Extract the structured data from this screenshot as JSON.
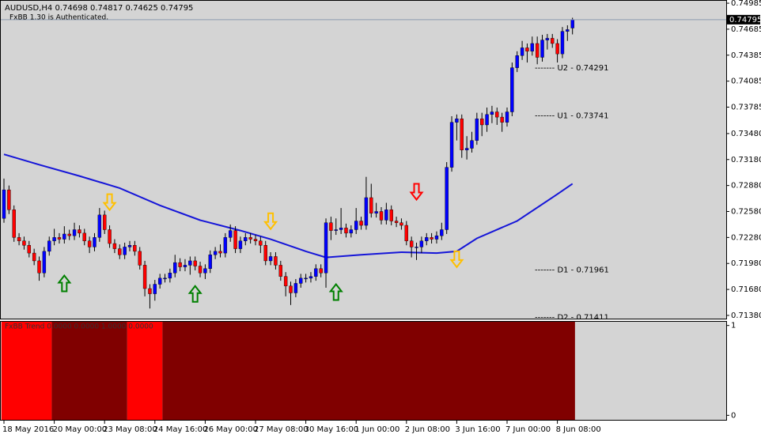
{
  "chart_data": {
    "type": "candlestick",
    "header": "AUDUSD,H4  0.74698 0.74817 0.74625 0.74795",
    "note": "FxBB 1.30 is Authenticated.",
    "bull_color": "#0000ff",
    "bear_color": "#ff0000",
    "wick_color": "#000000",
    "open": [
      0.725,
      0.7283,
      0.726,
      0.7228,
      0.7224,
      0.7219,
      0.721,
      0.7201,
      0.7187,
      0.7212,
      0.7224,
      0.7228,
      0.7226,
      0.7232,
      0.723,
      0.7237,
      0.7233,
      0.7224,
      0.7217,
      0.7228,
      0.7254,
      0.7237,
      0.7221,
      0.7215,
      0.7208,
      0.7217,
      0.7219,
      0.7212,
      0.7196,
      0.7169,
      0.7163,
      0.7174,
      0.7181,
      0.7181,
      0.7187,
      0.7199,
      0.7194,
      0.7196,
      0.7201,
      0.7195,
      0.7187,
      0.7192,
      0.7208,
      0.7212,
      0.721,
      0.7228,
      0.7236,
      0.7215,
      0.7224,
      0.7228,
      0.7226,
      0.7224,
      0.7219,
      0.7201,
      0.7206,
      0.7196,
      0.7183,
      0.7172,
      0.7164,
      0.7175,
      0.7181,
      0.7181,
      0.7183,
      0.7192,
      0.7187,
      0.7245,
      0.7236,
      0.7237,
      0.7239,
      0.7233,
      0.7237,
      0.7247,
      0.7242,
      0.7274,
      0.7256,
      0.7258,
      0.7248,
      0.726,
      0.7247,
      0.7245,
      0.7242,
      0.7224,
      0.7217,
      0.7217,
      0.7224,
      0.7228,
      0.7226,
      0.723,
      0.7237,
      0.7309,
      0.7361,
      0.7365,
      0.7329,
      0.7331,
      0.734,
      0.7365,
      0.7358,
      0.737,
      0.7373,
      0.7367,
      0.7361,
      0.7373,
      0.7424,
      0.7438,
      0.7447,
      0.7443,
      0.7452,
      0.7436,
      0.7456,
      0.7458,
      0.7452,
      0.744,
      0.7466,
      0.74698
    ],
    "high": [
      0.7296,
      0.7288,
      0.7265,
      0.7233,
      0.7229,
      0.7224,
      0.7215,
      0.7206,
      0.7217,
      0.7229,
      0.7238,
      0.7233,
      0.7241,
      0.7237,
      0.7245,
      0.7242,
      0.7238,
      0.7229,
      0.7233,
      0.7262,
      0.7259,
      0.7242,
      0.7226,
      0.722,
      0.7222,
      0.7224,
      0.7224,
      0.7217,
      0.7201,
      0.7174,
      0.7179,
      0.7186,
      0.7186,
      0.7192,
      0.7208,
      0.7204,
      0.7203,
      0.7206,
      0.7206,
      0.72,
      0.7197,
      0.7213,
      0.7217,
      0.722,
      0.7233,
      0.7243,
      0.7241,
      0.7229,
      0.7233,
      0.7233,
      0.7231,
      0.7229,
      0.7224,
      0.7211,
      0.7211,
      0.7201,
      0.7188,
      0.7177,
      0.718,
      0.7186,
      0.7186,
      0.7188,
      0.7197,
      0.7197,
      0.725,
      0.7252,
      0.725,
      0.7262,
      0.7244,
      0.7242,
      0.7262,
      0.7252,
      0.7298,
      0.729,
      0.7268,
      0.7263,
      0.7268,
      0.7265,
      0.7252,
      0.725,
      0.7247,
      0.7229,
      0.7222,
      0.7229,
      0.7233,
      0.7233,
      0.7235,
      0.7245,
      0.7315,
      0.7368,
      0.737,
      0.737,
      0.7345,
      0.735,
      0.7372,
      0.7372,
      0.7378,
      0.738,
      0.7378,
      0.7372,
      0.7378,
      0.743,
      0.7443,
      0.7455,
      0.7452,
      0.746,
      0.746,
      0.7462,
      0.7463,
      0.7463,
      0.7457,
      0.7471,
      0.7473,
      0.74817
    ],
    "low": [
      0.7245,
      0.7255,
      0.7223,
      0.7219,
      0.7214,
      0.7205,
      0.7196,
      0.7178,
      0.7182,
      0.7207,
      0.7219,
      0.7221,
      0.7221,
      0.7225,
      0.7225,
      0.7228,
      0.7219,
      0.721,
      0.7212,
      0.7223,
      0.7232,
      0.7216,
      0.721,
      0.7203,
      0.7203,
      0.7212,
      0.7207,
      0.7191,
      0.716,
      0.7146,
      0.7155,
      0.7169,
      0.7176,
      0.7176,
      0.7182,
      0.7189,
      0.7189,
      0.7185,
      0.719,
      0.7182,
      0.718,
      0.7187,
      0.7203,
      0.7205,
      0.7205,
      0.7223,
      0.721,
      0.721,
      0.7219,
      0.7221,
      0.7219,
      0.721,
      0.7196,
      0.7196,
      0.7191,
      0.7178,
      0.716,
      0.715,
      0.7159,
      0.717,
      0.7176,
      0.7176,
      0.7178,
      0.7182,
      0.717,
      0.7225,
      0.7231,
      0.7232,
      0.7228,
      0.7228,
      0.7232,
      0.7237,
      0.7237,
      0.7251,
      0.7251,
      0.7243,
      0.7243,
      0.7242,
      0.724,
      0.7237,
      0.7219,
      0.7205,
      0.7202,
      0.721,
      0.7219,
      0.7221,
      0.7221,
      0.7225,
      0.7232,
      0.7304,
      0.734,
      0.732,
      0.7318,
      0.7326,
      0.7335,
      0.7345,
      0.735,
      0.736,
      0.7358,
      0.735,
      0.7356,
      0.7368,
      0.7419,
      0.7433,
      0.743,
      0.7438,
      0.7428,
      0.7431,
      0.7445,
      0.7447,
      0.743,
      0.7435,
      0.7455,
      0.74625
    ],
    "close": [
      0.7283,
      0.726,
      0.7228,
      0.7224,
      0.7219,
      0.721,
      0.7201,
      0.7187,
      0.7212,
      0.7224,
      0.7228,
      0.7226,
      0.7232,
      0.723,
      0.7237,
      0.7233,
      0.7224,
      0.7217,
      0.7228,
      0.7254,
      0.7237,
      0.7221,
      0.7215,
      0.7208,
      0.7217,
      0.7219,
      0.7212,
      0.7196,
      0.7169,
      0.7163,
      0.7174,
      0.7181,
      0.7181,
      0.7187,
      0.7199,
      0.7194,
      0.7196,
      0.7201,
      0.7195,
      0.7187,
      0.7192,
      0.7208,
      0.7212,
      0.721,
      0.7228,
      0.7236,
      0.7215,
      0.7224,
      0.7228,
      0.7226,
      0.7224,
      0.7219,
      0.7201,
      0.7206,
      0.7196,
      0.7183,
      0.7172,
      0.7164,
      0.7175,
      0.7181,
      0.7181,
      0.7183,
      0.7192,
      0.7187,
      0.7245,
      0.7236,
      0.7237,
      0.7239,
      0.7233,
      0.7237,
      0.7247,
      0.7242,
      0.7274,
      0.7256,
      0.7258,
      0.7248,
      0.726,
      0.7247,
      0.7245,
      0.7242,
      0.7224,
      0.7217,
      0.7217,
      0.7224,
      0.7228,
      0.7226,
      0.723,
      0.7237,
      0.7309,
      0.7361,
      0.7365,
      0.7329,
      0.7331,
      0.734,
      0.7365,
      0.7358,
      0.737,
      0.7373,
      0.7367,
      0.7361,
      0.7373,
      0.7424,
      0.7438,
      0.7447,
      0.7443,
      0.7452,
      0.7436,
      0.7456,
      0.7458,
      0.7452,
      0.744,
      0.7466,
      0.7468,
      0.74795
    ],
    "ylim": [
      0.71343,
      0.75022
    ],
    "yticks": [
      0.74985,
      0.74685,
      0.74385,
      0.74085,
      0.73785,
      {
        "value": 0.7348,
        "label": "0.73480"
      },
      {
        "value": 0.7318,
        "label": "0.73180"
      },
      {
        "value": 0.7288,
        "label": "0.72880"
      },
      {
        "value": 0.7258,
        "label": "0.72580"
      },
      {
        "value": 0.7228,
        "label": "0.72280"
      },
      {
        "value": 0.7198,
        "label": "0.71980"
      },
      {
        "value": 0.7168,
        "label": "0.71680"
      },
      {
        "value": 0.7138,
        "label": "0.71380"
      }
    ],
    "xticks": [
      {
        "value": 0,
        "label": "18 May 2016"
      },
      {
        "value": 10,
        "label": "20 May 00:00"
      },
      {
        "value": 20,
        "label": "23 May 08:00"
      },
      {
        "value": 30,
        "label": "24 May 16:00"
      },
      {
        "value": 40,
        "label": "26 May 00:00"
      },
      {
        "value": 50,
        "label": "27 May 08:00"
      },
      {
        "value": 60,
        "label": "30 May 16:00"
      },
      {
        "value": 70,
        "label": "1 Jun 00:00"
      },
      {
        "value": 80,
        "label": "2 Jun 08:00"
      },
      {
        "value": 90,
        "label": "3 Jun 16:00"
      },
      {
        "value": 100,
        "label": "7 Jun 00:00"
      },
      {
        "value": 110,
        "label": "8 Jun 08:00"
      }
    ],
    "current_price": 0.74795,
    "ma": {
      "color": "#1515d8",
      "x": [
        0,
        7,
        15,
        23,
        31,
        39,
        47,
        53,
        60,
        64,
        71,
        79,
        86,
        90,
        94,
        102,
        110,
        113
      ],
      "values": [
        0.7324,
        0.7312,
        0.7299,
        0.7285,
        0.7265,
        0.7248,
        0.7236,
        0.7226,
        0.7212,
        0.7205,
        0.7208,
        0.7211,
        0.721,
        0.7212,
        0.7227,
        0.7247,
        0.7278,
        0.729
      ]
    },
    "levels": [
      {
        "label": "------- U2 - 0.74291",
        "value": 0.74291
      },
      {
        "label": "------- U1 - 0.73741",
        "value": 0.73741
      },
      {
        "label": "------- D1 - 0.71961",
        "value": 0.71961
      },
      {
        "label": "------- D2 - 0.71411",
        "value": 0.71411
      }
    ],
    "signals": [
      {
        "x": 12,
        "price": 0.7184,
        "direction": "up",
        "color": "#008000"
      },
      {
        "x": 38,
        "price": 0.7172,
        "direction": "up",
        "color": "#008000"
      },
      {
        "x": 66,
        "price": 0.7174,
        "direction": "up",
        "color": "#008000"
      },
      {
        "x": 21,
        "price": 0.7278,
        "direction": "down",
        "color": "#ffc000"
      },
      {
        "x": 53,
        "price": 0.7256,
        "direction": "down",
        "color": "#ffc000"
      },
      {
        "x": 82,
        "price": 0.729,
        "direction": "down",
        "color": "#ff0000"
      },
      {
        "x": 90,
        "price": 0.7212,
        "direction": "down",
        "color": "#ffc000"
      }
    ],
    "indicator": {
      "label": "FxBB Trend 0.0000 0.0000 1.0000 0.0000",
      "ylim": [
        -0.05,
        1.05
      ],
      "yticks": [
        1,
        0
      ],
      "segments": [
        {
          "start": 0,
          "end": 9,
          "color": "#ff0000"
        },
        {
          "start": 10,
          "end": 24,
          "color": "#800000"
        },
        {
          "start": 25,
          "end": 31,
          "color": "#ff0000"
        },
        {
          "start": 32,
          "end": 113,
          "color": "#800000"
        }
      ]
    }
  }
}
